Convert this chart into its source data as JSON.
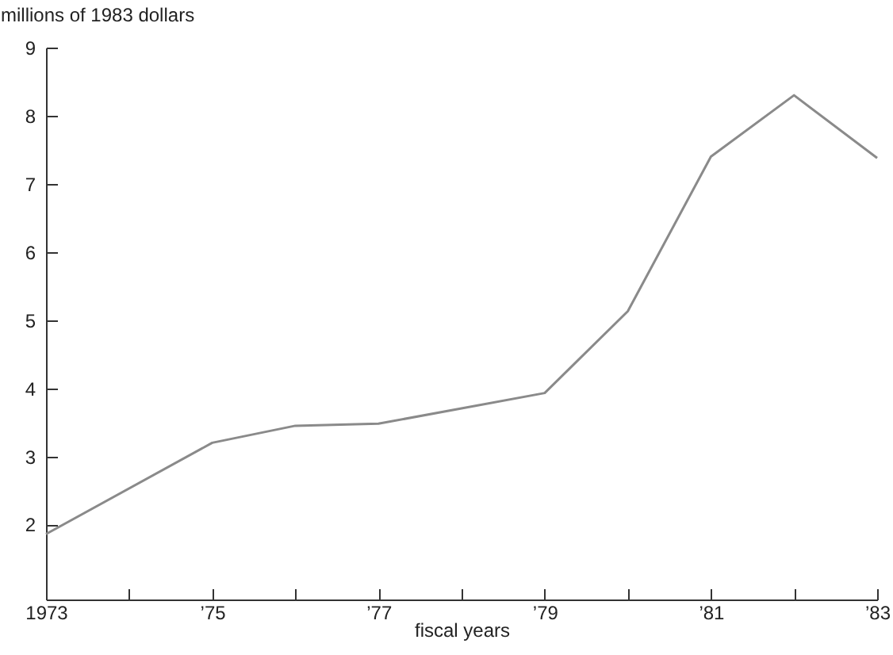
{
  "chart_data": {
    "type": "line",
    "xlabel": "fiscal years",
    "ylabel": "millions of 1983 dollars",
    "x": [
      1973,
      1975,
      1976,
      1977,
      1979,
      1980,
      1981,
      1982,
      1983
    ],
    "series": [
      {
        "color": "#8a8a8a",
        "values": [
          1.86,
          3.2,
          3.45,
          3.48,
          3.93,
          5.13,
          7.4,
          8.3,
          7.38
        ]
      }
    ],
    "xlim": [
      1973,
      1983
    ],
    "xticks": [
      {
        "value": 1973,
        "label": "1973"
      },
      {
        "value": 1974,
        "label": null
      },
      {
        "value": 1975,
        "label": "’75"
      },
      {
        "value": 1976,
        "label": null
      },
      {
        "value": 1977,
        "label": "’77"
      },
      {
        "value": 1978,
        "label": null
      },
      {
        "value": 1979,
        "label": "’79"
      },
      {
        "value": 1980,
        "label": null
      },
      {
        "value": 1981,
        "label": "’81"
      },
      {
        "value": 1982,
        "label": null
      },
      {
        "value": 1983,
        "label": "’83"
      }
    ],
    "ylim": [
      0.9,
      9
    ],
    "yticks": [
      2,
      3,
      4,
      5,
      6,
      7,
      8,
      9
    ],
    "grid": false,
    "marker": "none",
    "line_style": "solid"
  }
}
